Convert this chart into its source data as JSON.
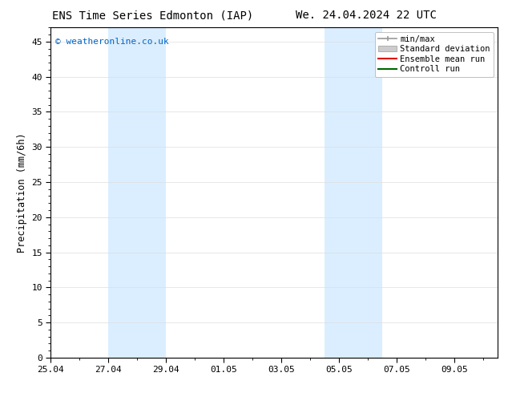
{
  "title_left": "ENS Time Series Edmonton (IAP)",
  "title_right": "We. 24.04.2024 22 UTC",
  "ylabel": "Precipitation (mm/6h)",
  "watermark": "© weatheronline.co.uk",
  "watermark_color": "#0066cc",
  "xtick_labels": [
    "25.04",
    "27.04",
    "29.04",
    "01.05",
    "03.05",
    "05.05",
    "07.05",
    "09.05"
  ],
  "xtick_positions": [
    0,
    2,
    4,
    6,
    8,
    10,
    12,
    14
  ],
  "xlim": [
    0,
    15.5
  ],
  "ylim": [
    0,
    47
  ],
  "ytick_positions": [
    0,
    5,
    10,
    15,
    20,
    25,
    30,
    35,
    40,
    45
  ],
  "shaded_regions": [
    {
      "start": 2,
      "end": 4,
      "color": "#daeeff"
    },
    {
      "start": 9.5,
      "end": 11.5,
      "color": "#daeeff"
    }
  ],
  "background_color": "#ffffff",
  "plot_bg_color": "#ffffff",
  "grid_color": "#dddddd",
  "title_fontsize": 10,
  "tick_fontsize": 8,
  "ylabel_fontsize": 8.5,
  "watermark_fontsize": 8,
  "legend_fontsize": 7.5
}
